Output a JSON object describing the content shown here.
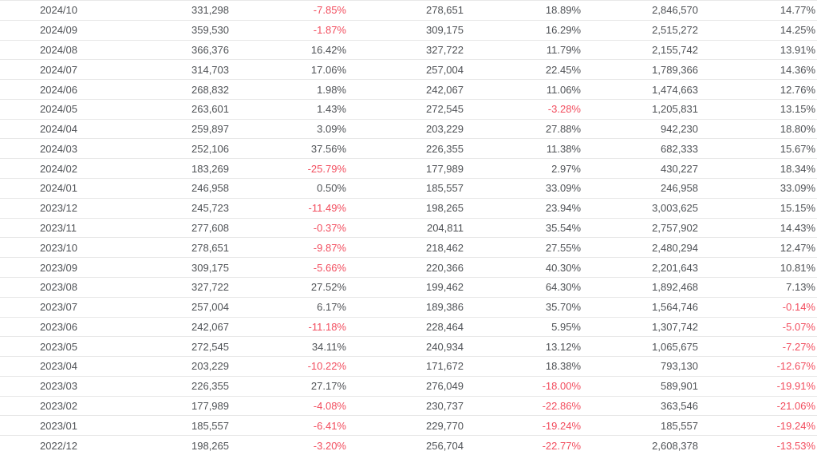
{
  "colors": {
    "text": "#4f5256",
    "negative": "#f24d5e",
    "row_border": "#e8e8e8",
    "background": "#ffffff"
  },
  "table": {
    "columns": [
      {
        "name": "month"
      },
      {
        "name": "value-1"
      },
      {
        "name": "change-1"
      },
      {
        "name": "value-2"
      },
      {
        "name": "change-2"
      },
      {
        "name": "value-3"
      },
      {
        "name": "change-3"
      }
    ],
    "rows": [
      [
        "2024/10",
        "331,298",
        "-7.85%",
        "278,651",
        "18.89%",
        "2,846,570",
        "14.77%"
      ],
      [
        "2024/09",
        "359,530",
        "-1.87%",
        "309,175",
        "16.29%",
        "2,515,272",
        "14.25%"
      ],
      [
        "2024/08",
        "366,376",
        "16.42%",
        "327,722",
        "11.79%",
        "2,155,742",
        "13.91%"
      ],
      [
        "2024/07",
        "314,703",
        "17.06%",
        "257,004",
        "22.45%",
        "1,789,366",
        "14.36%"
      ],
      [
        "2024/06",
        "268,832",
        "1.98%",
        "242,067",
        "11.06%",
        "1,474,663",
        "12.76%"
      ],
      [
        "2024/05",
        "263,601",
        "1.43%",
        "272,545",
        "-3.28%",
        "1,205,831",
        "13.15%"
      ],
      [
        "2024/04",
        "259,897",
        "3.09%",
        "203,229",
        "27.88%",
        "942,230",
        "18.80%"
      ],
      [
        "2024/03",
        "252,106",
        "37.56%",
        "226,355",
        "11.38%",
        "682,333",
        "15.67%"
      ],
      [
        "2024/02",
        "183,269",
        "-25.79%",
        "177,989",
        "2.97%",
        "430,227",
        "18.34%"
      ],
      [
        "2024/01",
        "246,958",
        "0.50%",
        "185,557",
        "33.09%",
        "246,958",
        "33.09%"
      ],
      [
        "2023/12",
        "245,723",
        "-11.49%",
        "198,265",
        "23.94%",
        "3,003,625",
        "15.15%"
      ],
      [
        "2023/11",
        "277,608",
        "-0.37%",
        "204,811",
        "35.54%",
        "2,757,902",
        "14.43%"
      ],
      [
        "2023/10",
        "278,651",
        "-9.87%",
        "218,462",
        "27.55%",
        "2,480,294",
        "12.47%"
      ],
      [
        "2023/09",
        "309,175",
        "-5.66%",
        "220,366",
        "40.30%",
        "2,201,643",
        "10.81%"
      ],
      [
        "2023/08",
        "327,722",
        "27.52%",
        "199,462",
        "64.30%",
        "1,892,468",
        "7.13%"
      ],
      [
        "2023/07",
        "257,004",
        "6.17%",
        "189,386",
        "35.70%",
        "1,564,746",
        "-0.14%"
      ],
      [
        "2023/06",
        "242,067",
        "-11.18%",
        "228,464",
        "5.95%",
        "1,307,742",
        "-5.07%"
      ],
      [
        "2023/05",
        "272,545",
        "34.11%",
        "240,934",
        "13.12%",
        "1,065,675",
        "-7.27%"
      ],
      [
        "2023/04",
        "203,229",
        "-10.22%",
        "171,672",
        "18.38%",
        "793,130",
        "-12.67%"
      ],
      [
        "2023/03",
        "226,355",
        "27.17%",
        "276,049",
        "-18.00%",
        "589,901",
        "-19.91%"
      ],
      [
        "2023/02",
        "177,989",
        "-4.08%",
        "230,737",
        "-22.86%",
        "363,546",
        "-21.06%"
      ],
      [
        "2023/01",
        "185,557",
        "-6.41%",
        "229,770",
        "-19.24%",
        "185,557",
        "-19.24%"
      ],
      [
        "2022/12",
        "198,265",
        "-3.20%",
        "256,704",
        "-22.77%",
        "2,608,378",
        "-13.53%"
      ]
    ]
  }
}
